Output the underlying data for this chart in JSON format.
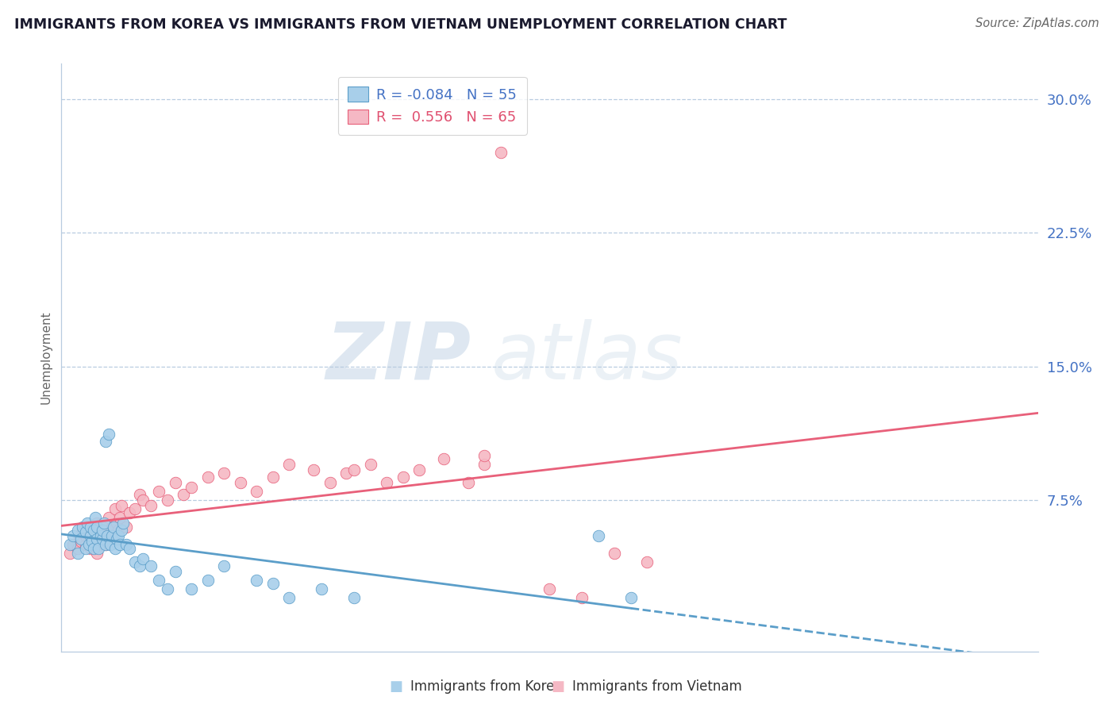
{
  "title": "IMMIGRANTS FROM KOREA VS IMMIGRANTS FROM VIETNAM UNEMPLOYMENT CORRELATION CHART",
  "source": "Source: ZipAtlas.com",
  "ylabel": "Unemployment",
  "xlim": [
    0.0,
    0.6
  ],
  "ylim": [
    -0.01,
    0.32
  ],
  "korea_R": -0.084,
  "korea_N": 55,
  "vietnam_R": 0.556,
  "vietnam_N": 65,
  "korea_color": "#A8CFEA",
  "vietnam_color": "#F5B8C4",
  "korea_line_color": "#5B9EC9",
  "vietnam_line_color": "#E8607A",
  "legend_korea": "Immigrants from Korea",
  "legend_vietnam": "Immigrants from Vietnam",
  "watermark_zip": "ZIP",
  "watermark_atlas": "atlas",
  "korea_scatter_x": [
    0.005,
    0.007,
    0.01,
    0.01,
    0.012,
    0.013,
    0.015,
    0.015,
    0.016,
    0.017,
    0.018,
    0.018,
    0.019,
    0.02,
    0.02,
    0.021,
    0.022,
    0.022,
    0.023,
    0.024,
    0.025,
    0.025,
    0.026,
    0.027,
    0.027,
    0.028,
    0.029,
    0.03,
    0.031,
    0.032,
    0.033,
    0.034,
    0.035,
    0.036,
    0.037,
    0.038,
    0.04,
    0.042,
    0.045,
    0.048,
    0.05,
    0.055,
    0.06,
    0.065,
    0.07,
    0.08,
    0.09,
    0.1,
    0.12,
    0.13,
    0.14,
    0.16,
    0.18,
    0.33,
    0.35
  ],
  "korea_scatter_y": [
    0.05,
    0.055,
    0.045,
    0.058,
    0.053,
    0.06,
    0.048,
    0.057,
    0.062,
    0.05,
    0.055,
    0.06,
    0.052,
    0.048,
    0.058,
    0.065,
    0.053,
    0.06,
    0.048,
    0.055,
    0.053,
    0.058,
    0.062,
    0.05,
    0.108,
    0.055,
    0.112,
    0.05,
    0.055,
    0.06,
    0.048,
    0.053,
    0.055,
    0.05,
    0.058,
    0.062,
    0.05,
    0.048,
    0.04,
    0.038,
    0.042,
    0.038,
    0.03,
    0.025,
    0.035,
    0.025,
    0.03,
    0.038,
    0.03,
    0.028,
    0.02,
    0.025,
    0.02,
    0.055,
    0.02
  ],
  "vietnam_scatter_x": [
    0.005,
    0.007,
    0.01,
    0.011,
    0.012,
    0.013,
    0.015,
    0.015,
    0.016,
    0.017,
    0.018,
    0.019,
    0.02,
    0.021,
    0.022,
    0.022,
    0.023,
    0.024,
    0.025,
    0.026,
    0.027,
    0.028,
    0.029,
    0.03,
    0.031,
    0.032,
    0.033,
    0.034,
    0.035,
    0.036,
    0.037,
    0.04,
    0.042,
    0.045,
    0.048,
    0.05,
    0.055,
    0.06,
    0.065,
    0.07,
    0.075,
    0.08,
    0.09,
    0.1,
    0.11,
    0.12,
    0.13,
    0.14,
    0.155,
    0.165,
    0.175,
    0.19,
    0.2,
    0.21,
    0.22,
    0.235,
    0.25,
    0.26,
    0.3,
    0.32,
    0.34,
    0.36,
    0.26,
    0.18,
    0.27
  ],
  "vietnam_scatter_y": [
    0.045,
    0.05,
    0.048,
    0.055,
    0.052,
    0.058,
    0.05,
    0.055,
    0.06,
    0.052,
    0.048,
    0.055,
    0.05,
    0.058,
    0.045,
    0.062,
    0.052,
    0.058,
    0.055,
    0.06,
    0.05,
    0.055,
    0.065,
    0.052,
    0.06,
    0.055,
    0.07,
    0.062,
    0.058,
    0.065,
    0.072,
    0.06,
    0.068,
    0.07,
    0.078,
    0.075,
    0.072,
    0.08,
    0.075,
    0.085,
    0.078,
    0.082,
    0.088,
    0.09,
    0.085,
    0.08,
    0.088,
    0.095,
    0.092,
    0.085,
    0.09,
    0.095,
    0.085,
    0.088,
    0.092,
    0.098,
    0.085,
    0.095,
    0.025,
    0.02,
    0.045,
    0.04,
    0.1,
    0.092,
    0.27
  ]
}
